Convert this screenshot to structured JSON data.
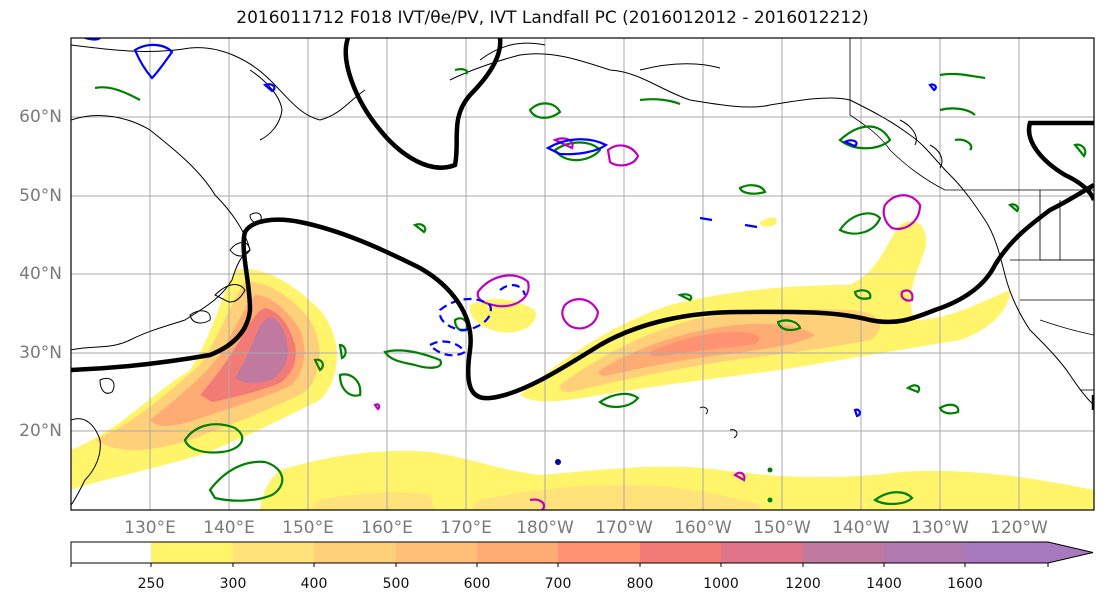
{
  "title": "2016011712 F018 IVT/θe/PV, IVT Landfall PC (2016012012 - 2016012212)",
  "map": {
    "lat_labels": [
      "20°N",
      "30°N",
      "40°N",
      "50°N",
      "60°N"
    ],
    "lon_labels": [
      "130°E",
      "140°E",
      "150°E",
      "160°E",
      "170°E",
      "180°W",
      "170°W",
      "160°W",
      "150°W",
      "140°W",
      "130°W",
      "120°W"
    ],
    "colors": {
      "ivt_fills": [
        "#ffffff",
        "#fff46a",
        "#ffe37a",
        "#ffd07a",
        "#ffbf78",
        "#ffab74",
        "#ff9270",
        "#f37b75",
        "#e07488",
        "#c07aa0",
        "#a77ac0"
      ],
      "pc_contour": "#000000",
      "theta_e_contour": "#008000",
      "pv_positive_contour": "#c000c0",
      "pv_negative_contour": "#0000ff"
    }
  },
  "colorbar": {
    "ticks": [
      "250",
      "300",
      "400",
      "500",
      "600",
      "700",
      "800",
      "1000",
      "1200",
      "1400",
      "1600"
    ]
  }
}
